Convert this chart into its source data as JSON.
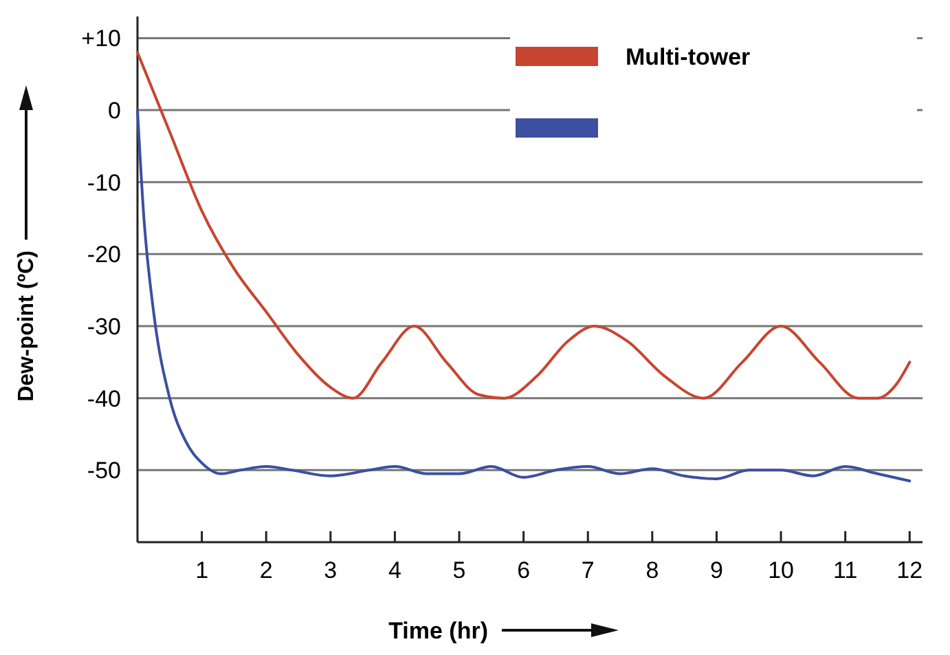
{
  "chart_data": {
    "type": "line",
    "xlabel": "Time (hr)",
    "ylabel": "Dew-point (ºC)",
    "xlim": [
      0,
      12.2
    ],
    "xticks": [
      1,
      2,
      3,
      4,
      5,
      6,
      7,
      8,
      9,
      10,
      11,
      12
    ],
    "ylim": [
      -60,
      13
    ],
    "yticks": [
      {
        "value": 10,
        "label": "+10"
      },
      0,
      -10,
      -20,
      -30,
      -40,
      -50
    ],
    "grid": "y",
    "legend": "top right",
    "marker": "none",
    "line_style": "solid",
    "series": [
      {
        "name": "Multi-tower",
        "color": "#c8452f",
        "x": [
          0,
          0.5,
          1,
          1.5,
          2,
          2.5,
          3,
          3.35,
          3.8,
          4.3,
          4.8,
          5.3,
          5.7,
          6.2,
          6.7,
          7.1,
          7.6,
          8.2,
          8.8,
          9.4,
          10,
          10.6,
          11.2,
          11.5,
          11.8,
          12
        ],
        "values": [
          8,
          -3,
          -14,
          -22,
          -28,
          -34,
          -38.5,
          -40,
          -35,
          -30,
          -35,
          -39.5,
          -40,
          -37,
          -32,
          -30,
          -32,
          -37,
          -40,
          -35,
          -30,
          -35,
          -40,
          -40,
          -38,
          -35
        ]
      },
      {
        "color": "#3c4fa0",
        "x": [
          0,
          0.1,
          0.25,
          0.5,
          0.75,
          1,
          1.3,
          1.6,
          2,
          2.4,
          3,
          3.6,
          4,
          4.5,
          5,
          5.5,
          6,
          6.5,
          7,
          7.5,
          8,
          8.5,
          9,
          9.5,
          10,
          10.5,
          11,
          11.5,
          12
        ],
        "values": [
          0,
          -15,
          -28,
          -40,
          -46,
          -49,
          -50.5,
          -50,
          -49.5,
          -50,
          -50.8,
          -50,
          -49.5,
          -50.5,
          -50.5,
          -49.5,
          -51,
          -50,
          -49.5,
          -50.5,
          -49.8,
          -50.8,
          -51.2,
          -50,
          -50,
          -50.8,
          -49.5,
          -50.5,
          -51.5
        ]
      }
    ]
  }
}
